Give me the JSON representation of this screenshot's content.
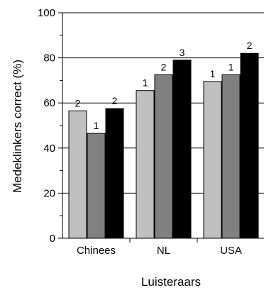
{
  "chart_data": {
    "type": "bar",
    "categories": [
      "Chinees",
      "NL",
      "USA"
    ],
    "series": [
      {
        "values": [
          56.5,
          65.5,
          69.5
        ],
        "labels": [
          "2",
          "1",
          "1"
        ],
        "color": "#c0c0c0"
      },
      {
        "values": [
          46.5,
          72.5,
          72.5
        ],
        "labels": [
          "1",
          "2",
          "1"
        ],
        "color": "#808080"
      },
      {
        "values": [
          57.5,
          79.0,
          82.0
        ],
        "labels": [
          "2",
          "3",
          "2"
        ],
        "color": "#000000"
      }
    ],
    "xlabel": "Luisteraars",
    "ylabel": "Medeklinkers correct (%)",
    "ylim": [
      0,
      100
    ],
    "yticks": [
      0,
      20,
      40,
      60,
      80,
      100
    ],
    "grid": "horizontal at major ticks"
  }
}
